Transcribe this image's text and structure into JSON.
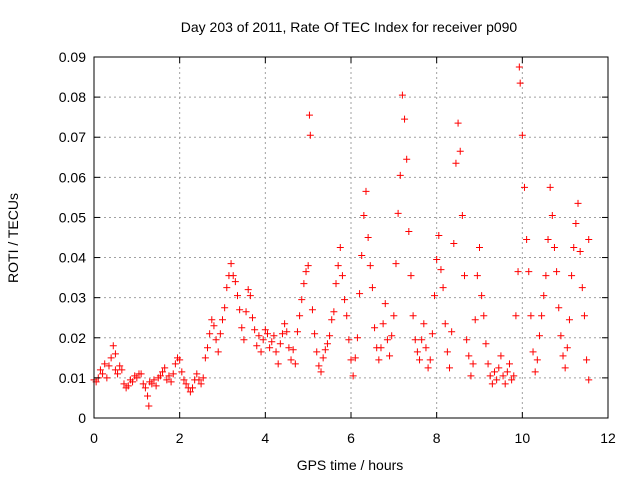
{
  "chart_data": {
    "type": "scatter",
    "title": "Day 203 of 2011, Rate Of TEC Index for receiver p090",
    "xlabel": "GPS time / hours",
    "ylabel": "ROTI / TECUs",
    "xlim": [
      0,
      12
    ],
    "ylim": [
      0,
      0.09
    ],
    "xticks": [
      "0",
      "2",
      "4",
      "6",
      "8",
      "10",
      "12"
    ],
    "yticks": [
      "0",
      "0.01",
      "0.02",
      "0.03",
      "0.04",
      "0.05",
      "0.06",
      "0.07",
      "0.08",
      "0.09"
    ],
    "grid": true,
    "marker": "+",
    "colors": {
      "points": "#ff0000",
      "grid": "#a0a0a0",
      "axes": "#000000"
    },
    "series": [
      {
        "name": "ROTI",
        "points": [
          [
            0.0,
            0.0095
          ],
          [
            0.05,
            0.009
          ],
          [
            0.1,
            0.01
          ],
          [
            0.15,
            0.012
          ],
          [
            0.2,
            0.011
          ],
          [
            0.25,
            0.0135
          ],
          [
            0.3,
            0.01
          ],
          [
            0.35,
            0.013
          ],
          [
            0.4,
            0.015
          ],
          [
            0.45,
            0.018
          ],
          [
            0.5,
            0.016
          ],
          [
            0.5,
            0.012
          ],
          [
            0.55,
            0.011
          ],
          [
            0.6,
            0.013
          ],
          [
            0.65,
            0.012
          ],
          [
            0.7,
            0.0085
          ],
          [
            0.75,
            0.0075
          ],
          [
            0.8,
            0.008
          ],
          [
            0.85,
            0.0095
          ],
          [
            0.9,
            0.009
          ],
          [
            0.95,
            0.0105
          ],
          [
            1.0,
            0.01
          ],
          [
            1.05,
            0.011
          ],
          [
            1.1,
            0.011
          ],
          [
            1.15,
            0.0085
          ],
          [
            1.2,
            0.0075
          ],
          [
            1.25,
            0.0055
          ],
          [
            1.28,
            0.003
          ],
          [
            1.3,
            0.009
          ],
          [
            1.35,
            0.0085
          ],
          [
            1.4,
            0.0095
          ],
          [
            1.45,
            0.008
          ],
          [
            1.5,
            0.01
          ],
          [
            1.55,
            0.0105
          ],
          [
            1.6,
            0.0115
          ],
          [
            1.65,
            0.0125
          ],
          [
            1.7,
            0.0095
          ],
          [
            1.75,
            0.0105
          ],
          [
            1.8,
            0.009
          ],
          [
            1.85,
            0.011
          ],
          [
            1.9,
            0.0135
          ],
          [
            1.95,
            0.015
          ],
          [
            2.0,
            0.0145
          ],
          [
            2.05,
            0.0115
          ],
          [
            2.1,
            0.0095
          ],
          [
            2.15,
            0.0085
          ],
          [
            2.2,
            0.0075
          ],
          [
            2.25,
            0.0065
          ],
          [
            2.3,
            0.0075
          ],
          [
            2.35,
            0.0095
          ],
          [
            2.4,
            0.011
          ],
          [
            2.45,
            0.0095
          ],
          [
            2.5,
            0.0085
          ],
          [
            2.55,
            0.01
          ],
          [
            2.6,
            0.015
          ],
          [
            2.65,
            0.0175
          ],
          [
            2.7,
            0.021
          ],
          [
            2.75,
            0.0245
          ],
          [
            2.8,
            0.023
          ],
          [
            2.85,
            0.0195
          ],
          [
            2.9,
            0.0165
          ],
          [
            2.95,
            0.021
          ],
          [
            3.0,
            0.0245
          ],
          [
            3.05,
            0.0275
          ],
          [
            3.1,
            0.0325
          ],
          [
            3.15,
            0.0355
          ],
          [
            3.2,
            0.0385
          ],
          [
            3.25,
            0.0355
          ],
          [
            3.3,
            0.034
          ],
          [
            3.35,
            0.0305
          ],
          [
            3.4,
            0.027
          ],
          [
            3.45,
            0.0225
          ],
          [
            3.5,
            0.0195
          ],
          [
            3.55,
            0.0265
          ],
          [
            3.6,
            0.032
          ],
          [
            3.65,
            0.0305
          ],
          [
            3.7,
            0.025
          ],
          [
            3.75,
            0.022
          ],
          [
            3.8,
            0.018
          ],
          [
            3.85,
            0.0205
          ],
          [
            3.9,
            0.0165
          ],
          [
            3.95,
            0.0195
          ],
          [
            4.0,
            0.022
          ],
          [
            4.05,
            0.021
          ],
          [
            4.1,
            0.0175
          ],
          [
            4.15,
            0.019
          ],
          [
            4.2,
            0.0205
          ],
          [
            4.25,
            0.0165
          ],
          [
            4.3,
            0.0135
          ],
          [
            4.35,
            0.0185
          ],
          [
            4.4,
            0.021
          ],
          [
            4.45,
            0.0235
          ],
          [
            4.5,
            0.0215
          ],
          [
            4.55,
            0.0175
          ],
          [
            4.6,
            0.0145
          ],
          [
            4.65,
            0.017
          ],
          [
            4.7,
            0.0135
          ],
          [
            4.75,
            0.0215
          ],
          [
            4.8,
            0.0255
          ],
          [
            4.85,
            0.0295
          ],
          [
            4.9,
            0.0335
          ],
          [
            4.95,
            0.0365
          ],
          [
            5.0,
            0.038
          ],
          [
            5.03,
            0.0755
          ],
          [
            5.05,
            0.0705
          ],
          [
            5.1,
            0.027
          ],
          [
            5.15,
            0.021
          ],
          [
            5.2,
            0.0165
          ],
          [
            5.25,
            0.013
          ],
          [
            5.3,
            0.0115
          ],
          [
            5.35,
            0.015
          ],
          [
            5.4,
            0.017
          ],
          [
            5.45,
            0.0185
          ],
          [
            5.5,
            0.0205
          ],
          [
            5.55,
            0.0245
          ],
          [
            5.6,
            0.0265
          ],
          [
            5.65,
            0.0335
          ],
          [
            5.7,
            0.038
          ],
          [
            5.75,
            0.0425
          ],
          [
            5.8,
            0.0355
          ],
          [
            5.85,
            0.0295
          ],
          [
            5.9,
            0.0255
          ],
          [
            5.95,
            0.0195
          ],
          [
            6.0,
            0.0145
          ],
          [
            6.05,
            0.0105
          ],
          [
            6.1,
            0.015
          ],
          [
            6.15,
            0.02
          ],
          [
            6.2,
            0.031
          ],
          [
            6.25,
            0.0405
          ],
          [
            6.3,
            0.0505
          ],
          [
            6.35,
            0.0565
          ],
          [
            6.4,
            0.045
          ],
          [
            6.45,
            0.038
          ],
          [
            6.5,
            0.0325
          ],
          [
            6.55,
            0.0225
          ],
          [
            6.6,
            0.0175
          ],
          [
            6.65,
            0.0145
          ],
          [
            6.7,
            0.0175
          ],
          [
            6.75,
            0.0235
          ],
          [
            6.8,
            0.0285
          ],
          [
            6.85,
            0.0195
          ],
          [
            6.9,
            0.0155
          ],
          [
            6.95,
            0.0205
          ],
          [
            7.0,
            0.0255
          ],
          [
            7.05,
            0.0385
          ],
          [
            7.1,
            0.051
          ],
          [
            7.15,
            0.0605
          ],
          [
            7.2,
            0.0805
          ],
          [
            7.25,
            0.0745
          ],
          [
            7.3,
            0.0645
          ],
          [
            7.35,
            0.0465
          ],
          [
            7.4,
            0.0355
          ],
          [
            7.45,
            0.0255
          ],
          [
            7.5,
            0.0195
          ],
          [
            7.55,
            0.0165
          ],
          [
            7.6,
            0.0145
          ],
          [
            7.65,
            0.0195
          ],
          [
            7.7,
            0.0235
          ],
          [
            7.75,
            0.0175
          ],
          [
            7.8,
            0.0125
          ],
          [
            7.85,
            0.0145
          ],
          [
            7.9,
            0.021
          ],
          [
            7.95,
            0.0305
          ],
          [
            8.0,
            0.0395
          ],
          [
            8.05,
            0.0455
          ],
          [
            8.1,
            0.037
          ],
          [
            8.15,
            0.0325
          ],
          [
            8.2,
            0.0235
          ],
          [
            8.25,
            0.0165
          ],
          [
            8.3,
            0.0125
          ],
          [
            8.35,
            0.0215
          ],
          [
            8.4,
            0.0435
          ],
          [
            8.45,
            0.0635
          ],
          [
            8.5,
            0.0735
          ],
          [
            8.55,
            0.0665
          ],
          [
            8.6,
            0.0505
          ],
          [
            8.65,
            0.0355
          ],
          [
            8.7,
            0.0195
          ],
          [
            8.75,
            0.0155
          ],
          [
            8.8,
            0.0105
          ],
          [
            8.85,
            0.0135
          ],
          [
            8.9,
            0.0245
          ],
          [
            8.95,
            0.0355
          ],
          [
            9.0,
            0.0425
          ],
          [
            9.05,
            0.0305
          ],
          [
            9.1,
            0.0255
          ],
          [
            9.15,
            0.0185
          ],
          [
            9.2,
            0.0135
          ],
          [
            9.25,
            0.0105
          ],
          [
            9.3,
            0.0085
          ],
          [
            9.35,
            0.0115
          ],
          [
            9.4,
            0.0095
          ],
          [
            9.45,
            0.0125
          ],
          [
            9.5,
            0.0155
          ],
          [
            9.55,
            0.0105
          ],
          [
            9.6,
            0.0085
          ],
          [
            9.65,
            0.0115
          ],
          [
            9.7,
            0.0135
          ],
          [
            9.75,
            0.0095
          ],
          [
            9.8,
            0.0105
          ],
          [
            9.85,
            0.0255
          ],
          [
            9.9,
            0.0365
          ],
          [
            9.93,
            0.0875
          ],
          [
            9.95,
            0.0835
          ],
          [
            10.0,
            0.0705
          ],
          [
            10.05,
            0.0575
          ],
          [
            10.1,
            0.0445
          ],
          [
            10.15,
            0.0365
          ],
          [
            10.2,
            0.0255
          ],
          [
            10.25,
            0.0165
          ],
          [
            10.3,
            0.0115
          ],
          [
            10.35,
            0.0145
          ],
          [
            10.4,
            0.0205
          ],
          [
            10.45,
            0.0255
          ],
          [
            10.5,
            0.0305
          ],
          [
            10.55,
            0.0355
          ],
          [
            10.6,
            0.0445
          ],
          [
            10.65,
            0.0575
          ],
          [
            10.7,
            0.0505
          ],
          [
            10.75,
            0.0425
          ],
          [
            10.8,
            0.0365
          ],
          [
            10.85,
            0.0275
          ],
          [
            10.9,
            0.0205
          ],
          [
            10.95,
            0.0155
          ],
          [
            11.0,
            0.0125
          ],
          [
            11.05,
            0.0175
          ],
          [
            11.1,
            0.0245
          ],
          [
            11.15,
            0.0355
          ],
          [
            11.2,
            0.0425
          ],
          [
            11.25,
            0.0485
          ],
          [
            11.3,
            0.0535
          ],
          [
            11.35,
            0.0415
          ],
          [
            11.4,
            0.0325
          ],
          [
            11.45,
            0.0255
          ],
          [
            11.5,
            0.0145
          ],
          [
            11.55,
            0.0095
          ],
          [
            11.55,
            0.0445
          ]
        ]
      }
    ]
  }
}
